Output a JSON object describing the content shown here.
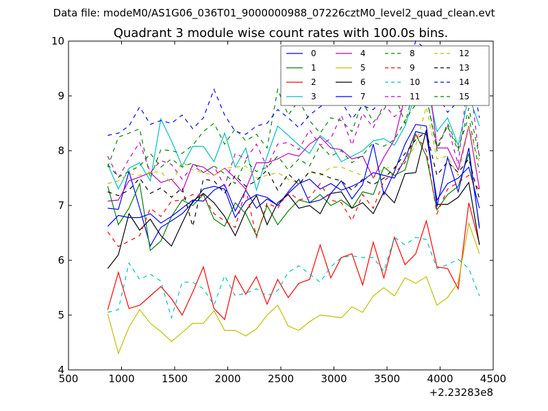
{
  "suptitle": "Data file: modeM0/AS1G06_036T01_9000000988_07226cztM0_level2_quad_clean.evt",
  "chart_data": {
    "type": "line",
    "title": "Quadrant 3 module wise count rates with 100.0s bins.",
    "xlabel": "",
    "ylabel": "",
    "x_offset_label": "+2.23283e8",
    "xlim": [
      500,
      4500
    ],
    "ylim": [
      4,
      10
    ],
    "xticks": [
      "500",
      "1000",
      "1500",
      "2000",
      "2500",
      "3000",
      "3500",
      "4000",
      "4500"
    ],
    "yticks": [
      "4",
      "5",
      "6",
      "7",
      "8",
      "9",
      "10"
    ],
    "legend_position": "top-right",
    "x": [
      870,
      970,
      1070,
      1170,
      1270,
      1370,
      1470,
      1570,
      1670,
      1770,
      1870,
      1970,
      2070,
      2170,
      2270,
      2370,
      2470,
      2570,
      2670,
      2770,
      2870,
      2970,
      3070,
      3170,
      3270,
      3370,
      3470,
      3570,
      3670,
      3770,
      3870,
      3970,
      4070,
      4170,
      4270,
      4370
    ],
    "series": [
      {
        "name": "0",
        "color": "#0000ff",
        "dash": "solid",
        "values": [
          6.95,
          6.93,
          7.62,
          6.95,
          6.26,
          6.6,
          6.72,
          6.85,
          7.05,
          7.3,
          7.35,
          7.3,
          6.78,
          7.08,
          7.2,
          7.15,
          7.0,
          7.22,
          7.4,
          7.48,
          7.3,
          7.4,
          7.28,
          7.35,
          7.45,
          7.6,
          7.55,
          7.5,
          7.85,
          8.35,
          8.3,
          7.1,
          7.4,
          7.5,
          7.7,
          6.95
        ]
      },
      {
        "name": "1",
        "color": "#008000",
        "dash": "solid",
        "values": [
          7.35,
          6.65,
          6.95,
          7.4,
          6.18,
          6.35,
          6.8,
          7.1,
          7.0,
          7.2,
          6.75,
          6.62,
          7.05,
          6.85,
          6.45,
          7.0,
          6.65,
          6.9,
          7.1,
          7.05,
          7.2,
          7.0,
          7.1,
          6.95,
          7.25,
          7.2,
          7.7,
          7.55,
          7.65,
          8.3,
          7.9,
          6.92,
          7.2,
          7.35,
          7.95,
          6.62
        ]
      },
      {
        "name": "2",
        "color": "#ff0000",
        "dash": "solid",
        "values": [
          5.1,
          5.78,
          5.12,
          5.18,
          5.35,
          5.52,
          5.3,
          5.0,
          5.42,
          5.88,
          5.12,
          4.92,
          5.72,
          5.38,
          5.7,
          5.2,
          5.65,
          5.32,
          5.58,
          5.65,
          6.28,
          5.68,
          6.05,
          6.12,
          5.55,
          6.33,
          5.68,
          6.42,
          5.92,
          6.12,
          6.72,
          5.88,
          5.85,
          5.48,
          7.05,
          6.3
        ]
      },
      {
        "name": "3",
        "color": "#00bfbf",
        "dash": "solid",
        "values": [
          7.75,
          7.3,
          7.68,
          7.78,
          7.45,
          8.58,
          8.18,
          7.72,
          8.08,
          8.08,
          7.8,
          8.32,
          7.7,
          8.05,
          7.28,
          7.9,
          8.45,
          8.28,
          8.1,
          7.95,
          8.28,
          8.12,
          7.8,
          7.9,
          8.0,
          8.18,
          8.22,
          8.1,
          8.45,
          9.05,
          9.25,
          8.35,
          8.6,
          8.1,
          9.0,
          8.45
        ]
      },
      {
        "name": "4",
        "color": "#bf00bf",
        "dash": "solid",
        "values": [
          7.08,
          7.1,
          7.45,
          7.52,
          7.6,
          7.42,
          7.48,
          7.25,
          7.75,
          7.7,
          7.55,
          7.68,
          7.5,
          7.3,
          7.78,
          7.78,
          7.85,
          7.95,
          7.9,
          8.12,
          8.25,
          8.05,
          8.02,
          7.85,
          7.9,
          7.5,
          7.88,
          8.2,
          9.0,
          9.42,
          9.68,
          8.05,
          8.05,
          7.65,
          8.45,
          7.3
        ]
      },
      {
        "name": "5",
        "color": "#bfbf00",
        "dash": "solid",
        "values": [
          5.02,
          4.3,
          4.78,
          5.1,
          4.85,
          4.7,
          4.52,
          4.68,
          4.85,
          4.85,
          5.08,
          4.72,
          4.72,
          4.62,
          4.75,
          5.0,
          5.18,
          4.8,
          4.72,
          4.88,
          5.0,
          4.98,
          4.95,
          5.15,
          5.05,
          5.35,
          5.5,
          5.35,
          5.68,
          5.58,
          5.7,
          5.18,
          5.32,
          5.6,
          6.68,
          6.12
        ]
      },
      {
        "name": "6",
        "color": "#000000",
        "dash": "solid",
        "values": [
          5.85,
          6.1,
          6.85,
          6.55,
          6.75,
          6.45,
          6.26,
          6.68,
          7.08,
          7.22,
          7.05,
          6.8,
          6.45,
          6.9,
          7.18,
          6.65,
          7.05,
          7.2,
          6.95,
          7.0,
          6.85,
          7.22,
          7.25,
          6.95,
          7.05,
          6.85,
          7.25,
          7.05,
          7.58,
          7.6,
          8.38,
          7.02,
          7.02,
          7.15,
          7.42,
          6.28
        ]
      },
      {
        "name": "7",
        "color": "#0000ff",
        "dash": "solid",
        "values": [
          6.62,
          6.82,
          6.78,
          6.78,
          6.85,
          6.68,
          6.8,
          6.95,
          7.1,
          7.08,
          7.28,
          7.38,
          6.9,
          7.28,
          6.95,
          7.12,
          7.0,
          7.25,
          7.48,
          7.05,
          7.1,
          7.22,
          7.45,
          7.12,
          7.38,
          8.12,
          7.2,
          7.62,
          8.12,
          8.48,
          8.45,
          6.98,
          7.88,
          7.25,
          8.05,
          6.58
        ]
      },
      {
        "name": "8",
        "color": "#008000",
        "dash": "dashed",
        "values": [
          7.7,
          8.25,
          8.32,
          8.4,
          7.5,
          8.02,
          8.0,
          7.95,
          8.1,
          8.35,
          8.5,
          8.12,
          8.4,
          8.18,
          8.3,
          8.05,
          9.12,
          8.65,
          8.92,
          8.55,
          8.32,
          8.6,
          8.55,
          8.35,
          8.9,
          8.52,
          8.75,
          9.05,
          8.5,
          9.25,
          9.0,
          8.0,
          8.5,
          8.05,
          8.62,
          7.6
        ]
      },
      {
        "name": "9",
        "color": "#ff0000",
        "dash": "dashed",
        "values": [
          6.52,
          6.25,
          6.35,
          6.45,
          6.95,
          6.8,
          7.08,
          7.1,
          7.2,
          7.18,
          6.85,
          6.72,
          6.6,
          7.3,
          6.42,
          7.05,
          6.95,
          7.25,
          7.1,
          7.15,
          7.4,
          7.1,
          7.05,
          6.72,
          7.2,
          6.95,
          7.45,
          7.6,
          7.78,
          8.3,
          8.0,
          6.85,
          7.3,
          7.42,
          7.55,
          7.28
        ]
      },
      {
        "name": "10",
        "color": "#00bfbf",
        "dash": "dashed",
        "values": [
          5.05,
          5.1,
          5.95,
          5.65,
          5.75,
          5.62,
          4.95,
          5.6,
          5.6,
          5.48,
          5.18,
          5.72,
          5.35,
          5.4,
          5.48,
          5.35,
          5.45,
          5.78,
          5.9,
          5.75,
          5.6,
          5.88,
          6.05,
          6.08,
          6.05,
          6.05,
          5.8,
          6.42,
          6.28,
          6.42,
          6.38,
          5.85,
          5.92,
          6.02,
          5.85,
          5.35
        ]
      },
      {
        "name": "11",
        "color": "#bf00bf",
        "dash": "dashed",
        "values": [
          7.9,
          7.5,
          7.85,
          8.15,
          7.6,
          7.82,
          7.75,
          7.48,
          7.72,
          7.6,
          7.72,
          7.35,
          7.95,
          7.85,
          8.12,
          7.7,
          8.12,
          8.15,
          8.02,
          8.38,
          8.1,
          8.22,
          8.65,
          8.1,
          8.68,
          8.42,
          8.85,
          8.62,
          8.8,
          9.35,
          9.55,
          8.1,
          8.45,
          7.75,
          9.45,
          7.85
        ]
      },
      {
        "name": "12",
        "color": "#bfbf00",
        "dash": "dashed",
        "values": [
          7.4,
          7.45,
          7.58,
          7.55,
          7.6,
          7.62,
          7.4,
          7.8,
          7.65,
          7.6,
          7.55,
          7.68,
          7.7,
          7.72,
          7.5,
          7.55,
          7.6,
          7.48,
          7.4,
          7.62,
          7.55,
          7.7,
          7.7,
          7.62,
          7.55,
          7.5,
          7.68,
          7.7,
          7.8,
          8.1,
          8.8,
          7.85,
          7.9,
          7.55,
          8.42,
          7.78
        ]
      },
      {
        "name": "13",
        "color": "#000000",
        "dash": "dashed",
        "values": [
          7.25,
          7.18,
          7.28,
          7.5,
          7.22,
          7.32,
          7.15,
          7.32,
          6.62,
          7.48,
          7.45,
          7.22,
          7.55,
          7.35,
          7.45,
          7.65,
          7.28,
          7.58,
          7.38,
          7.62,
          7.58,
          7.5,
          7.45,
          7.28,
          7.48,
          7.38,
          7.5,
          7.68,
          7.95,
          8.2,
          8.35,
          7.55,
          7.8,
          7.6,
          7.85,
          7.12
        ]
      },
      {
        "name": "14",
        "color": "#0000ff",
        "dash": "dashed",
        "values": [
          8.28,
          8.32,
          8.45,
          8.8,
          8.48,
          8.55,
          8.5,
          8.65,
          8.4,
          8.6,
          9.12,
          8.65,
          8.35,
          8.3,
          8.45,
          8.5,
          8.75,
          8.6,
          8.42,
          8.65,
          8.8,
          8.95,
          8.9,
          8.58,
          8.82,
          8.75,
          8.95,
          9.02,
          9.35,
          10.0,
          9.85,
          9.05,
          8.7,
          8.9,
          9.72,
          8.6
        ]
      },
      {
        "name": "15",
        "color": "#008000",
        "dash": "dashed",
        "values": [
          7.75,
          7.52,
          7.62,
          7.72,
          7.95,
          7.7,
          7.85,
          7.7,
          7.78,
          7.6,
          7.72,
          7.58,
          7.4,
          7.82,
          7.62,
          7.7,
          7.9,
          7.65,
          7.85,
          7.72,
          8.1,
          7.9,
          8.0,
          7.78,
          7.92,
          8.15,
          8.08,
          8.2,
          8.55,
          8.85,
          9.0,
          8.05,
          8.45,
          8.0,
          8.78,
          7.9
        ]
      }
    ]
  }
}
